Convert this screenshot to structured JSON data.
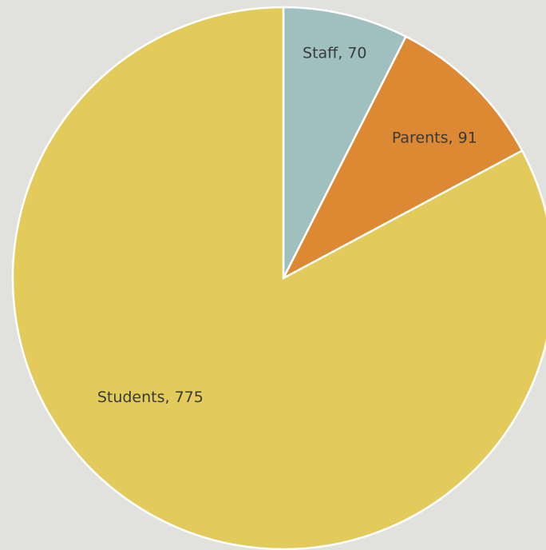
{
  "chart_data": {
    "type": "pie",
    "values": [
      70,
      91,
      775
    ],
    "value_labels": [
      "Staff, 70",
      "Parents, 91",
      "Students, 775"
    ],
    "colors": [
      "#a0bfbf",
      "#dd8833",
      "#e2cb5a"
    ]
  }
}
